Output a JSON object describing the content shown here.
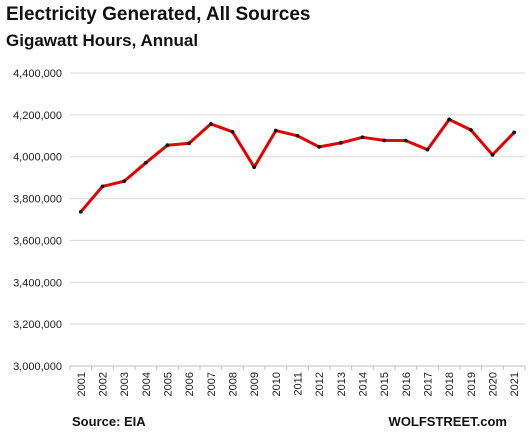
{
  "chart_data": {
    "type": "line",
    "title": "Electricity  Generated,  All Sources",
    "subtitle": "Gigawatt Hours, Annual",
    "source": "Source: EIA",
    "brand": "WOLFSTREET.com",
    "x": [
      "2001",
      "2002",
      "2003",
      "2004",
      "2005",
      "2006",
      "2007",
      "2008",
      "2009",
      "2010",
      "2011",
      "2012",
      "2013",
      "2014",
      "2015",
      "2016",
      "2017",
      "2018",
      "2019",
      "2020",
      "2021"
    ],
    "series": [
      {
        "values": [
          3737000,
          3858000,
          3883000,
          3971000,
          4055000,
          4064000,
          4157000,
          4119000,
          3950000,
          4125000,
          4100000,
          4047000,
          4066000,
          4093000,
          4078000,
          4077000,
          4034000,
          4178000,
          4128000,
          4009000,
          4116000
        ],
        "color": "#e60000"
      }
    ],
    "ylim": [
      3000000,
      4400000
    ],
    "yticks": [
      3000000,
      3200000,
      3400000,
      3600000,
      3800000,
      4000000,
      4200000,
      4400000
    ],
    "ytick_labels": [
      "3,000,000",
      "3,200,000",
      "3,400,000",
      "3,600,000",
      "3,800,000",
      "4,000,000",
      "4,200,000",
      "4,400,000"
    ],
    "grid": true,
    "colors": {
      "line": "#e60000",
      "marker": "#111111",
      "grid": "#d9d9d9"
    }
  }
}
